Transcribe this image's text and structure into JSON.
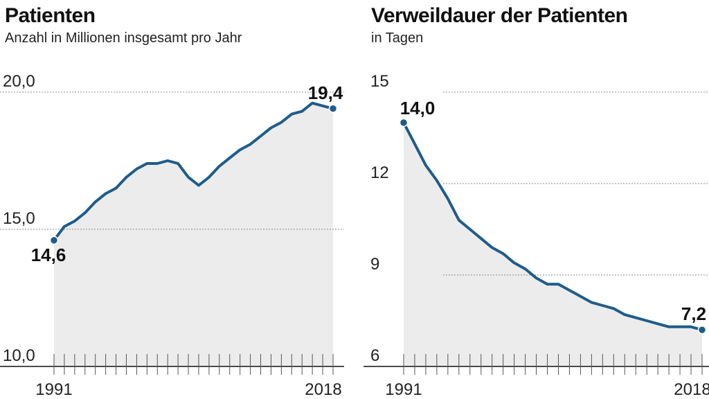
{
  "chart_data": [
    {
      "type": "area",
      "title": "Patienten",
      "subtitle": "Anzahl in Millionen insgesamt pro Jahr",
      "ylim": [
        10,
        20
      ],
      "yticks": [
        "10,0",
        "15,0",
        "20,0"
      ],
      "ytick_values": [
        10,
        15,
        20
      ],
      "x_start_label": "1991",
      "x_end_label": "2018",
      "x": [
        1991,
        1992,
        1993,
        1994,
        1995,
        1996,
        1997,
        1998,
        1999,
        2000,
        2001,
        2002,
        2003,
        2004,
        2005,
        2006,
        2007,
        2008,
        2009,
        2010,
        2011,
        2012,
        2013,
        2014,
        2015,
        2016,
        2017,
        2018
      ],
      "values": [
        14.6,
        15.1,
        15.3,
        15.6,
        16.0,
        16.3,
        16.5,
        16.9,
        17.2,
        17.4,
        17.4,
        17.5,
        17.4,
        16.9,
        16.6,
        16.9,
        17.3,
        17.6,
        17.9,
        18.1,
        18.4,
        18.7,
        18.9,
        19.2,
        19.3,
        19.6,
        19.5,
        19.4
      ],
      "start_label": "14,6",
      "end_label": "19,4",
      "grid": true,
      "line_color": "#1f5c8b",
      "fill_color": "#ececec"
    },
    {
      "type": "area",
      "title": "Verweildauer der Patienten",
      "subtitle": "in Tagen",
      "ylim": [
        6,
        15
      ],
      "yticks": [
        "6",
        "9",
        "12",
        "15"
      ],
      "ytick_values": [
        6,
        9,
        12,
        15
      ],
      "x_start_label": "1991",
      "x_end_label": "2018",
      "x": [
        1991,
        1992,
        1993,
        1994,
        1995,
        1996,
        1997,
        1998,
        1999,
        2000,
        2001,
        2002,
        2003,
        2004,
        2005,
        2006,
        2007,
        2008,
        2009,
        2010,
        2011,
        2012,
        2013,
        2014,
        2015,
        2016,
        2017,
        2018
      ],
      "values": [
        14.0,
        13.3,
        12.6,
        12.1,
        11.5,
        10.8,
        10.5,
        10.2,
        9.9,
        9.7,
        9.4,
        9.2,
        8.9,
        8.7,
        8.7,
        8.5,
        8.3,
        8.1,
        8.0,
        7.9,
        7.7,
        7.6,
        7.5,
        7.4,
        7.3,
        7.3,
        7.3,
        7.2
      ],
      "start_label": "14,0",
      "end_label": "7,2",
      "grid": true,
      "line_color": "#1f5c8b",
      "fill_color": "#ececec"
    }
  ]
}
